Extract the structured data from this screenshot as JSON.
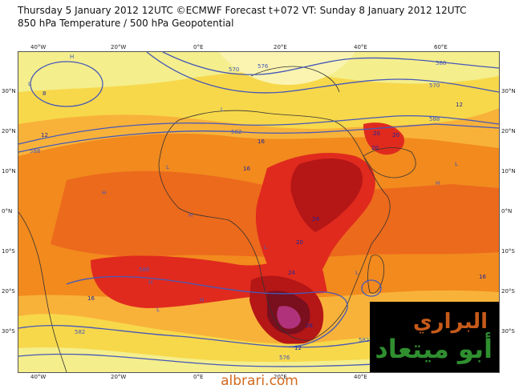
{
  "header": {
    "line1": "Thursday 5 January 2012 12UTC ©ECMWF Forecast t+072 VT: Sunday 8 January 2012 12UTC",
    "line2": "850 hPa Temperature / 500 hPa Geopotential"
  },
  "map": {
    "lon_labels": [
      "40°W",
      "20°W",
      "0°E",
      "20°E",
      "40°E",
      "60°E"
    ],
    "lat_labels": [
      "30°N",
      "20°N",
      "10°N",
      "0°N",
      "10°S",
      "20°S",
      "30°S"
    ],
    "contour_labels": [
      "570",
      "576",
      "582",
      "588",
      "588",
      "582",
      "576",
      "570",
      "588",
      "582",
      "588"
    ],
    "temp_labels": [
      "8",
      "12",
      "16",
      "20",
      "24",
      "28",
      "12",
      "16",
      "24",
      "20",
      "20",
      "16",
      "12",
      "16",
      "20"
    ],
    "pressure_marks": [
      "L",
      "H",
      "H",
      "L",
      "H",
      "H",
      "L",
      "L",
      "H",
      "L",
      "H",
      "L",
      "L"
    ],
    "colors": {
      "pale": "#f4ee8c",
      "yellow": "#f7d84a",
      "orange_light": "#f8b23a",
      "orange": "#f28a1e",
      "orange_deep": "#ec6a1c",
      "red": "#e02a1e",
      "red_dark": "#b51616",
      "maroon": "#7a0f1e",
      "magenta": "#b0327a",
      "ocean_outline": "#333333",
      "geopotential": "#4658b8"
    }
  },
  "logo": {
    "top": "البراري",
    "bottom": "أبو ميتعاد"
  },
  "footer": {
    "site": "albrari.com"
  }
}
